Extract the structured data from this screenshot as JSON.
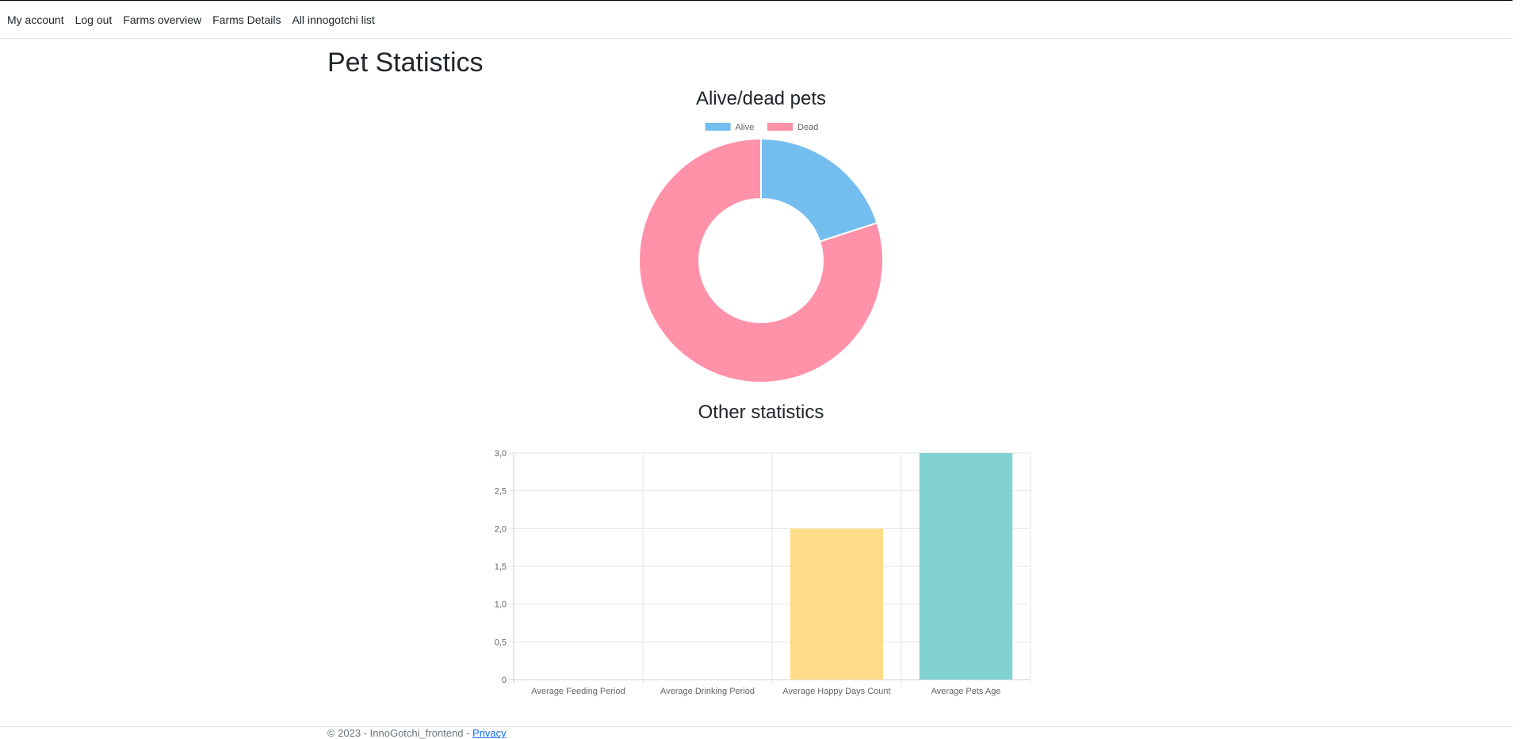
{
  "nav": {
    "items": [
      {
        "label": "My account"
      },
      {
        "label": "Log out"
      },
      {
        "label": "Farms overview"
      },
      {
        "label": "Farms Details"
      },
      {
        "label": "All innogotchi list"
      }
    ]
  },
  "page": {
    "title": "Pet Statistics"
  },
  "donut": {
    "title": "Alive/dead pets"
  },
  "bar": {
    "title": "Other statistics"
  },
  "footer": {
    "text": "© 2023 - InnoGotchi_frontend - ",
    "link": "Privacy"
  },
  "chart_data": [
    {
      "type": "pie",
      "variant": "doughnut",
      "labels": [
        "Alive",
        "Dead"
      ],
      "values": [
        1,
        4
      ],
      "colors": [
        "#74bdef",
        "#ff91a8"
      ],
      "legend": "top"
    },
    {
      "type": "bar",
      "categories": [
        "Average Feeding Period",
        "Average Drinking Period",
        "Average Happy Days Count",
        "Average Pets Age"
      ],
      "values": [
        0,
        0,
        2,
        3
      ],
      "colors": [
        "#ff91a8",
        "#74bdef",
        "#ffdc88",
        "#82d2d2"
      ],
      "ylim": [
        0,
        3
      ],
      "yticks": [
        "0",
        "0,5",
        "1,0",
        "1,5",
        "2,0",
        "2,5",
        "3,0"
      ],
      "grid": true
    }
  ]
}
